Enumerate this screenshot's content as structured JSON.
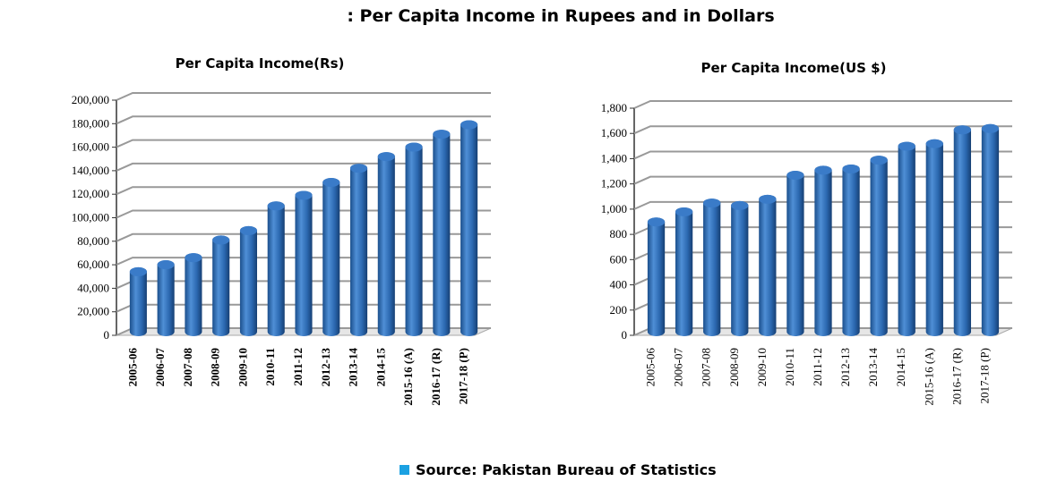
{
  "title": ": Per Capita Income in Rupees and in Dollars",
  "source": "Source: Pakistan Bureau of Statistics",
  "chart_data": [
    {
      "type": "bar",
      "title": "Per Capita Income(Rs)",
      "categories": [
        "2005-06",
        "2006-07",
        "2007-08",
        "2008-09",
        "2009-10",
        "2010-11",
        "2011-12",
        "2012-13",
        "2013-14",
        "2014-15",
        "2015-16 (A)",
        "2016-17 (R)",
        "2017-18 (P)"
      ],
      "values": [
        51000,
        57000,
        63000,
        78000,
        86000,
        107000,
        116000,
        127000,
        139000,
        149000,
        157000,
        168000,
        176000
      ],
      "color": "#2e6db4",
      "ylim": [
        0,
        200000
      ],
      "yticks": [
        0,
        {
          "value": 20000,
          "label": "20,000"
        },
        {
          "value": 40000,
          "label": "40,000"
        },
        {
          "value": 60000,
          "label": "60,000"
        },
        {
          "value": 80000,
          "label": "80,000"
        },
        {
          "value": 100000,
          "label": "100,000"
        },
        {
          "value": 120000,
          "label": "120,000"
        },
        {
          "value": 140000,
          "label": "140,000"
        },
        {
          "value": 160000,
          "label": "160,000"
        },
        {
          "value": 180000,
          "label": "180,000"
        },
        {
          "value": 200000,
          "label": "200,000"
        }
      ],
      "grid": true
    },
    {
      "type": "bar",
      "title": "Per Capita Income(US $)",
      "categories": [
        "2005-06",
        "2006-07",
        "2007-08",
        "2008-09",
        "2009-10",
        "2010-11",
        "2011-12",
        "2012-13",
        "2013-14",
        "2014-15",
        "2015-16 (A)",
        "2016-17 (R)",
        "2017-18 (P)"
      ],
      "values": [
        870,
        950,
        1020,
        1000,
        1050,
        1240,
        1280,
        1290,
        1360,
        1470,
        1490,
        1600,
        1610
      ],
      "color": "#2e6db4",
      "ylim": [
        0,
        1800
      ],
      "yticks": [
        0,
        200,
        400,
        600,
        800,
        {
          "value": 1000,
          "label": "1,000"
        },
        {
          "value": 1200,
          "label": "1,200"
        },
        {
          "value": 1400,
          "label": "1,400"
        },
        {
          "value": 1600,
          "label": "1,600"
        },
        {
          "value": 1800,
          "label": "1,800"
        }
      ],
      "grid": true
    }
  ]
}
